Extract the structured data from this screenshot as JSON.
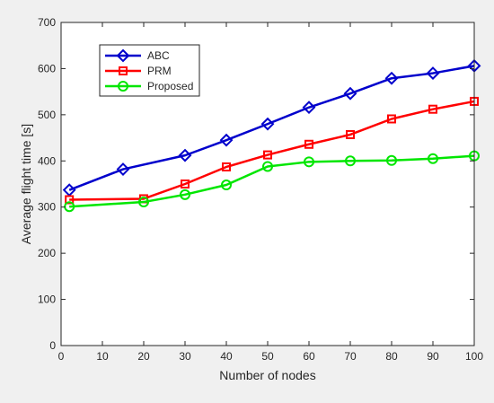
{
  "chart_data": {
    "type": "line",
    "xlabel": "Number of nodes",
    "ylabel": "Average flight time [s]",
    "xlim": [
      0,
      100
    ],
    "ylim": [
      0,
      700
    ],
    "xticks": [
      "0",
      "10",
      "20",
      "30",
      "40",
      "50",
      "60",
      "70",
      "80",
      "90",
      "100"
    ],
    "yticks": [
      "0",
      "100",
      "200",
      "300",
      "400",
      "500",
      "600",
      "700"
    ],
    "grid": false,
    "legend_position": "top-left",
    "series": [
      {
        "name": "ABC",
        "color": "#0000cc",
        "marker": "diamond",
        "x": [
          2,
          15,
          30,
          40,
          50,
          60,
          70,
          80,
          90,
          100
        ],
        "y": [
          337,
          382,
          412,
          445,
          480,
          516,
          546,
          579,
          590,
          606
        ]
      },
      {
        "name": "PRM",
        "color": "#ff0000",
        "marker": "square",
        "x": [
          2,
          20,
          30,
          40,
          50,
          60,
          70,
          80,
          90,
          100
        ],
        "y": [
          316,
          318,
          350,
          387,
          413,
          436,
          457,
          491,
          512,
          529
        ]
      },
      {
        "name": "Proposed",
        "color": "#00e600",
        "marker": "circle",
        "x": [
          2,
          20,
          30,
          40,
          50,
          60,
          70,
          80,
          90,
          100
        ],
        "y": [
          301,
          311,
          327,
          348,
          388,
          398,
          400,
          401,
          405,
          411
        ]
      }
    ]
  }
}
